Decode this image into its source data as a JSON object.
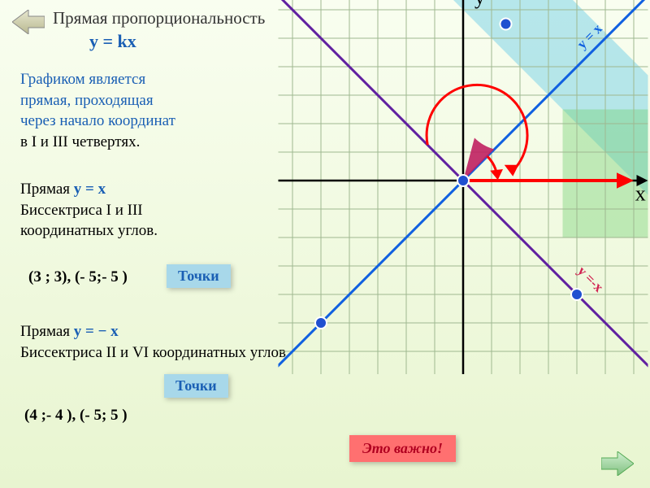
{
  "title": "Прямая пропорциональность",
  "formula": "y = kx",
  "desc1_l1": "Графиком является",
  "desc1_l2": "прямая, проходящая",
  "desc1_l3": "через начало координат",
  "desc1_l4": "в I и  III четвертях.",
  "desc2_l1": "Прямая ",
  "desc2_eq1": "y = x",
  "desc2_l2": "Биссектриса I и  III",
  "desc2_l3": "координатных углов.",
  "points1": "(3 ;  3),  (- 5;- 5 )",
  "btn_tochki": "Точки",
  "desc3_l1": "Прямая ",
  "desc3_eq1": "y = − x",
  "desc3_l2": "Биссектриса II и  VI координатных углов.",
  "points2": "(4 ;- 4 ),  (- 5;  5 )",
  "btn_important": "Это важно!",
  "axis_y": "y",
  "axis_x": "x",
  "label_yx": "y = x",
  "label_ynx": "y =-x",
  "colors": {
    "grid": "#9fb890",
    "axis": "#000000",
    "x_positive": "#ff0000",
    "line_yx": "#1060e0",
    "line_ynx": "#6020a0",
    "highlight_band": "#80d4e8",
    "green_band": "#70d070",
    "point_fill": "#2050d0",
    "arc1": "#ff0000",
    "arc2_fill": "#c02060"
  },
  "grid": {
    "cell": 35,
    "ox": 230,
    "oy": 232,
    "xmin": -6.5,
    "xmax": 6.5,
    "ymin": -7,
    "ymax": 7
  },
  "points_on_graph": [
    {
      "x": 1.5,
      "y": 5.5
    },
    {
      "x": -5,
      "y": -5
    },
    {
      "x": 0,
      "y": 0
    },
    {
      "x": 4,
      "y": -4
    }
  ]
}
